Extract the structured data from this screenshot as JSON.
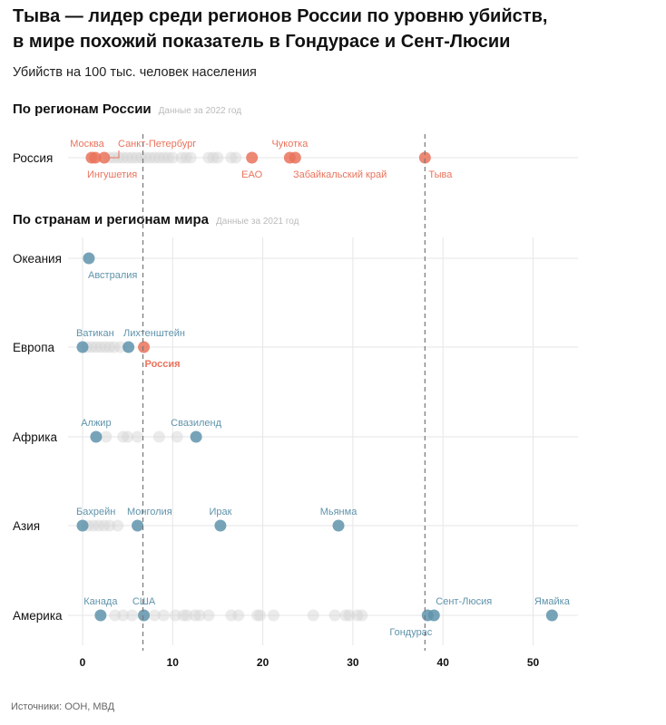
{
  "title_line1": "Тыва — лидер среди регионов России по уровню убийств,",
  "title_line2": "в мире похожий показатель в Гондурасе и Сент-Люсии",
  "subtitle": "Убийств на 100 тыс. человек населения",
  "section_russia": {
    "title": "По регионам России",
    "note": "Данные за 2022 год"
  },
  "section_world": {
    "title": "По странам и регионам мира",
    "note": "Данные за 2021 год"
  },
  "source": "Источники: ООН, МВД",
  "colors": {
    "russia": "#e9735c",
    "world": "#5f93ab",
    "other": "#d3d3d3",
    "grid": "#e6e6e6",
    "ref_line": "#777777"
  },
  "chart_data": {
    "type": "scatter",
    "xlim": [
      0,
      55
    ],
    "xticks": [
      0,
      10,
      20,
      30,
      40,
      50
    ],
    "grid": true,
    "reference_lines": [
      {
        "x": 6.7,
        "label": "Россия"
      },
      {
        "x": 38.0,
        "label": "Тыва"
      }
    ],
    "russia_row": {
      "label": "Россия",
      "highlighted": [
        {
          "name": "Москва",
          "value": 1.0,
          "pos": "above"
        },
        {
          "name": "Ингушетия",
          "value": 1.4,
          "pos": "below"
        },
        {
          "name": "Санкт-Петербург",
          "value": 2.4,
          "pos": "above"
        },
        {
          "name": "ЕАО",
          "value": 18.8,
          "pos": "below"
        },
        {
          "name": "Чукотка",
          "value": 23.0,
          "pos": "above"
        },
        {
          "name": "Забайкальский край",
          "value": 23.6,
          "pos": "below"
        },
        {
          "name": "Тыва",
          "value": 38.0,
          "pos": "below"
        }
      ],
      "others": [
        3,
        3.5,
        4,
        4.5,
        5,
        5.5,
        6,
        6.5,
        7,
        7.5,
        8,
        8.5,
        9,
        9.5,
        10,
        11,
        11.5,
        12,
        14,
        14.5,
        15,
        16.5,
        17
      ]
    },
    "world_rows": [
      {
        "label": "Океания",
        "highlighted": [
          {
            "name": "Австралия",
            "value": 0.7,
            "pos": "below"
          }
        ],
        "others": []
      },
      {
        "label": "Европа",
        "highlighted": [
          {
            "name": "Ватикан",
            "value": 0.0,
            "pos": "above"
          },
          {
            "name": "Лихтенштейн",
            "value": 5.1,
            "pos": "above"
          },
          {
            "name": "Россия",
            "value": 6.8,
            "pos": "below",
            "russia": true
          }
        ],
        "others": [
          0.5,
          1,
          1.5,
          2,
          2.5,
          3,
          3.5,
          4.2
        ]
      },
      {
        "label": "Африка",
        "highlighted": [
          {
            "name": "Алжир",
            "value": 1.5,
            "pos": "above"
          },
          {
            "name": "Свазиленд",
            "value": 12.6,
            "pos": "above"
          }
        ],
        "others": [
          2.6,
          4.5,
          5,
          6.1,
          8.5,
          10.5
        ]
      },
      {
        "label": "Азия",
        "highlighted": [
          {
            "name": "Бахрейн",
            "value": 0.0,
            "pos": "above"
          },
          {
            "name": "Монголия",
            "value": 6.1,
            "pos": "above"
          },
          {
            "name": "Ирак",
            "value": 15.3,
            "pos": "above"
          },
          {
            "name": "Мьянма",
            "value": 28.4,
            "pos": "above"
          }
        ],
        "others": [
          0.6,
          1.2,
          1.8,
          2.4,
          3,
          3.9
        ]
      },
      {
        "label": "Америка",
        "highlighted": [
          {
            "name": "Канада",
            "value": 2.0,
            "pos": "above"
          },
          {
            "name": "США",
            "value": 6.8,
            "pos": "above"
          },
          {
            "name": "Гондурас",
            "value": 38.3,
            "pos": "below"
          },
          {
            "name": "Сент-Люсия",
            "value": 39.0,
            "pos": "above"
          },
          {
            "name": "Ямайка",
            "value": 52.1,
            "pos": "above"
          }
        ],
        "others": [
          3.6,
          4.5,
          5.5,
          8,
          9,
          10.3,
          11.2,
          11.6,
          12.5,
          13,
          14,
          16.5,
          17.3,
          19.4,
          19.7,
          21.2,
          25.6,
          28,
          29.2,
          29.6,
          30.5,
          31
        ]
      }
    ]
  }
}
